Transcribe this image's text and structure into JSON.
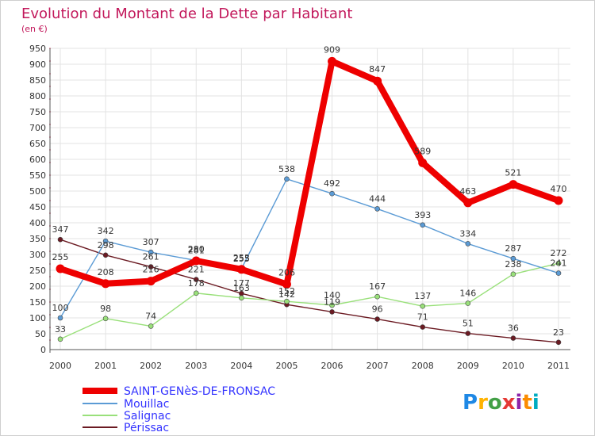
{
  "chart_data": {
    "type": "line",
    "title": "Evolution du Montant de la Dette par Habitant",
    "subtitle": "(en €)",
    "xlabel": "",
    "ylabel": "",
    "categories": [
      "2000",
      "2001",
      "2002",
      "2003",
      "2004",
      "2005",
      "2006",
      "2007",
      "2008",
      "2009",
      "2010",
      "2011"
    ],
    "ylim": [
      0,
      950
    ],
    "yticks": [
      0,
      50,
      100,
      150,
      200,
      250,
      300,
      350,
      400,
      450,
      500,
      550,
      600,
      650,
      700,
      750,
      800,
      850,
      900,
      950
    ],
    "grid": true,
    "legend_position": "bottom-left",
    "series": [
      {
        "name": "SAINT-GENèS-DE-FRONSAC",
        "color": "#ee0000",
        "values": [
          255,
          208,
          216,
          280,
          253,
          206,
          909,
          847,
          589,
          463,
          521,
          470
        ]
      },
      {
        "name": "Mouillac",
        "color": "#5b9bd5",
        "values": [
          100,
          342,
          307,
          281,
          255,
          538,
          492,
          444,
          393,
          334,
          287,
          241
        ]
      },
      {
        "name": "Salignac",
        "color": "#99e07a",
        "values": [
          33,
          98,
          74,
          178,
          163,
          152,
          140,
          167,
          137,
          146,
          238,
          272
        ]
      },
      {
        "name": "Périssac",
        "color": "#6b1a22",
        "values": [
          347,
          298,
          261,
          221,
          177,
          142,
          119,
          96,
          71,
          51,
          36,
          23
        ]
      }
    ]
  },
  "logo": {
    "text": "Proxiti"
  }
}
